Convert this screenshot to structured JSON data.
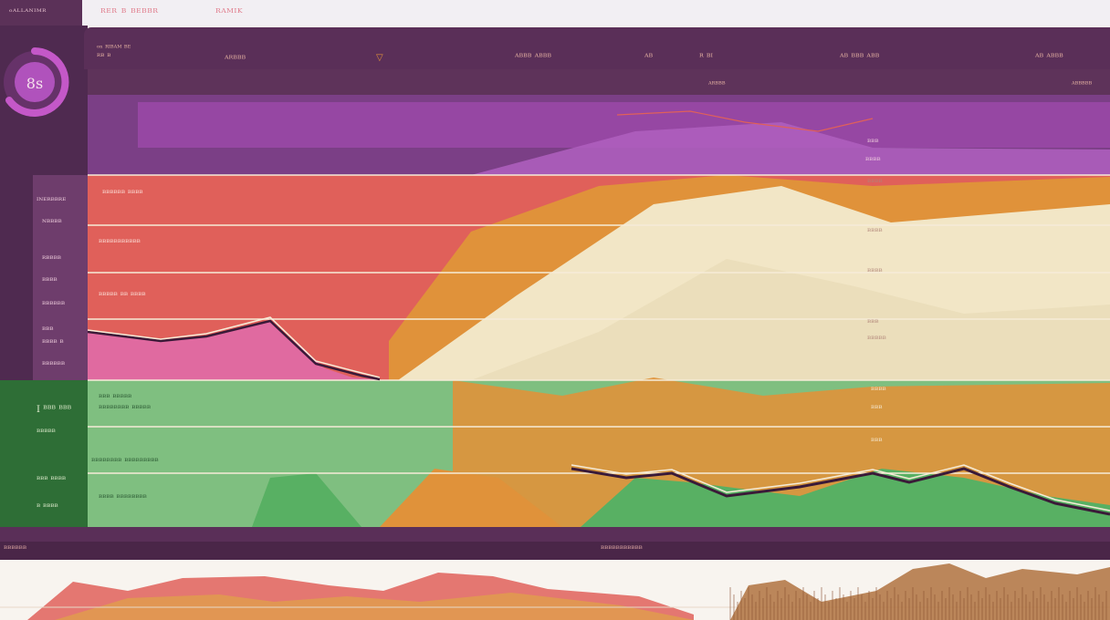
{
  "tabs": [
    "ᵒᴬᴸᴸᴬᴺᴵᴹᴿ",
    "ᴿᴱᴿ ᴮ ᴮᴱᴮᴮᴿ",
    "ᴿᴬᴹᴵᴷ"
  ],
  "gauge": {
    "value": "8ꜱ",
    "color": "#c458c8"
  },
  "header": {
    "left_small": "ᵒⁿ ᴿᴵᴮᴬᴹ ᴮᴱ",
    "left_small2": "ᴿᴮ ᴮ",
    "col1": "ᴬᴿᴮᴮᴮ",
    "col2": "ᴬᴮᴮᴮ  ᴬᴮᴮᴮ",
    "col3": "ᴬᴮ",
    "col4": "ᴿ ᴮᴵ",
    "col5": "ᴬᴮ  ᴮᴮᴮ  ᴬᴮᴮ",
    "col6": "ᴬᴮ  ᴬᴮᴮᴮ",
    "sub1": "ᴬᴿᴮᴮᴮ",
    "sub2": "ᴬᴮᴮᴮᴮᴮ"
  },
  "rail_labels": [
    "ᴵᴺᴱᴿᴮᴮᴿᴱ",
    "ᴺᴮᴮᴮᴮ",
    "ᴿᴮᴮᴮᴮ",
    "ᴮᴮᴮᴮ",
    "ᴮᴮᴮᴮᴮᴮ",
    "ᴮᴮᴮ",
    "ᴮᴮᴮᴮ ᴮ",
    "ᴮᴮᴮᴮᴮᴮ"
  ],
  "rail_green_labels": [
    "I ᴮᴮᴮ ᴮᴮᴮ",
    "ᴮᴮᴮᴮᴮ",
    "ᴮᴮᴮ ᴮᴮᴮᴮ",
    "ᴮ ᴮᴮᴮᴮ"
  ],
  "band_labels": [
    "ᴮᴮᴮᴮᴮᴮ ᴮᴮᴮᴮ",
    "ᴮᴮᴮᴮᴮᴮᴮᴮᴮᴮᴮ",
    "ᴮᴮᴮᴮᴮ ᴮᴮ ᴮᴮᴮᴮ",
    "ᴮᴮᴮ ᴮᴮᴮᴮᴮ",
    "ᴮᴮᴮᴮᴮᴮᴮᴮ ᴮᴮᴮᴮᴮ",
    "ᴮᴮᴮᴮᴮᴮᴮᴮ ᴮᴮᴮᴮᴮᴮᴮᴮᴮ",
    "ᴮᴮᴮᴮ ᴮᴮᴮᴮᴮᴮᴮᴮ"
  ],
  "right_labels": [
    "ᴮᴮᴮ",
    "ᴮᴮᴮᴮ",
    "ᴮᴮᴮᴮ",
    "ᴮᴮᴮᴮ",
    "ᴮᴮᴮᴮ",
    "ᴮᴮᴮ",
    "ᴮᴮᴮᴮᴮ",
    "ᴮᴮᴮᴮ",
    "ᴮᴮᴮ",
    "ᴮᴮᴮ"
  ],
  "footer": {
    "left": "ᴮᴮᴮᴮᴮᴮ",
    "center": "ᴮᴮᴮᴮᴮᴮᴮᴮᴮᴮᴮ"
  },
  "colors": {
    "purple": "#8a3f8f",
    "magenta": "#b060c0",
    "coral": "#e0605a",
    "orange": "#e0923a",
    "cream": "#f2e6c6",
    "green": "#58b063",
    "pink": "#e06aa0",
    "dark": "#3a1a38"
  },
  "chart_data": {
    "type": "area",
    "x": [
      0,
      1,
      2,
      3,
      4,
      5,
      6,
      7,
      8,
      9,
      10,
      11,
      12
    ],
    "series": [
      {
        "values": [
          0.18,
          0.2,
          0.35,
          0.25,
          0.12,
          0.3,
          0.45,
          0.5,
          0.46,
          0.55,
          0.5,
          0.42,
          0.4
        ]
      },
      {
        "values": [
          0.12,
          0.14,
          0.22,
          0.25,
          0.28,
          0.5,
          0.68,
          0.78,
          0.85,
          0.82,
          0.7,
          0.6,
          0.5
        ]
      },
      {
        "values": [
          0.05,
          0.08,
          0.12,
          0.15,
          0.3,
          0.42,
          0.55,
          0.65,
          0.72,
          0.74,
          0.68,
          0.6,
          0.55
        ]
      },
      {
        "values": [
          0.02,
          0.04,
          0.08,
          0.12,
          0.18,
          0.25,
          0.3,
          0.38,
          0.45,
          0.5,
          0.48,
          0.42,
          0.35
        ]
      }
    ]
  }
}
